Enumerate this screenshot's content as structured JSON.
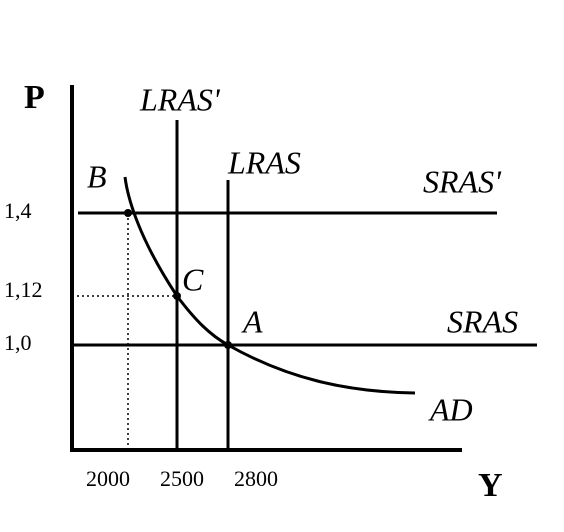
{
  "axes": {
    "y_label": "P",
    "x_label": "Y"
  },
  "y_ticks": [
    "1,4",
    "1,12",
    "1,0"
  ],
  "x_ticks": [
    "2000",
    "2500",
    "2800"
  ],
  "curves": {
    "lras_prime": "LRAS'",
    "lras": "LRAS",
    "sras_prime": "SRAS'",
    "sras": "SRAS",
    "ad": "AD"
  },
  "points": {
    "b": "B",
    "c": "C",
    "a": "A"
  }
}
